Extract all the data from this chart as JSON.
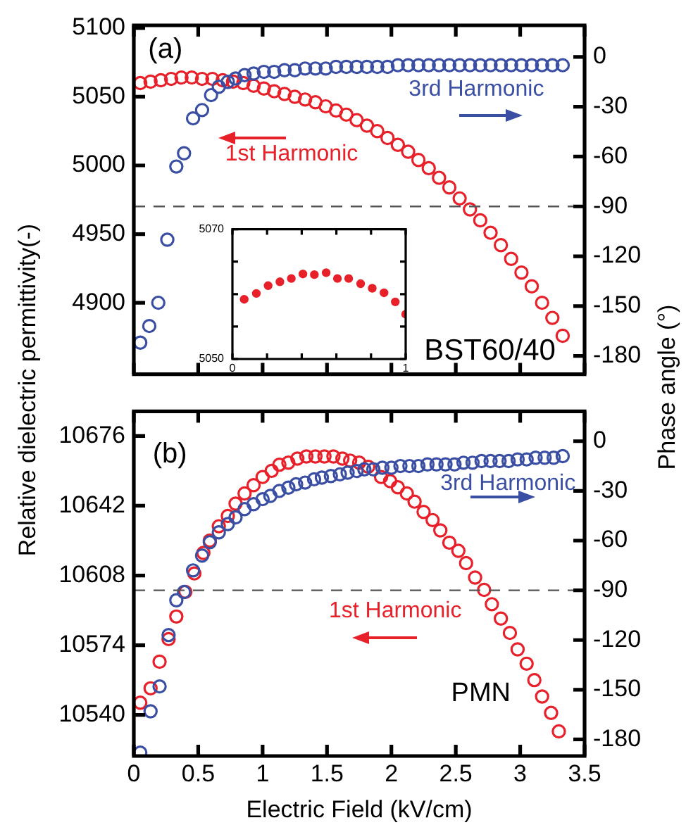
{
  "chart_data": [
    {
      "type": "scatter",
      "ylabel": "Relative dielectric permittivity(-)",
      "y2label": "Phase angle (°)",
      "annotations": [
        "(a)",
        "BST60/40"
      ],
      "xlim": [
        0,
        3.5
      ],
      "xticks": [
        0,
        0.5,
        1,
        1.5,
        2,
        2.5,
        3,
        3.5
      ],
      "ylim": [
        4848,
        5102
      ],
      "yticks": [
        4900,
        4950,
        5000,
        5050,
        5100
      ],
      "y2lim": [
        -191,
        19
      ],
      "y2ticks": [
        -180,
        -150,
        -120,
        -90,
        -60,
        -30,
        0
      ],
      "tick_labels": "y",
      "marker": "circle",
      "ref_lines": [
        {
          "axis": "y2",
          "value": -90,
          "color": "#555555",
          "line_style": "dashed"
        }
      ],
      "series": [
        {
          "name": "1st Harmonic",
          "color": "#e8202a",
          "axis": "y",
          "x": [
            0.05,
            0.13,
            0.21,
            0.29,
            0.37,
            0.45,
            0.53,
            0.61,
            0.69,
            0.77,
            0.85,
            0.93,
            1.01,
            1.09,
            1.17,
            1.25,
            1.33,
            1.41,
            1.49,
            1.57,
            1.65,
            1.73,
            1.81,
            1.89,
            1.97,
            2.05,
            2.13,
            2.21,
            2.29,
            2.37,
            2.45,
            2.53,
            2.61,
            2.69,
            2.77,
            2.85,
            2.93,
            3.01,
            3.09,
            3.17,
            3.25,
            3.33
          ],
          "values": [
            5060,
            5061,
            5062,
            5063,
            5064,
            5064,
            5063,
            5063,
            5062,
            5061,
            5060,
            5058,
            5056,
            5054,
            5052,
            5050,
            5048,
            5046,
            5043,
            5040,
            5037,
            5033,
            5029,
            5025,
            5020,
            5015,
            5010,
            5004,
            4998,
            4991,
            4984,
            4976,
            4968,
            4960,
            4951,
            4942,
            4932,
            4922,
            4912,
            4900,
            4889,
            4876
          ]
        },
        {
          "name": "3rd Harmonic",
          "color": "#3a4fa3",
          "axis": "y2",
          "x": [
            0.05,
            0.12,
            0.19,
            0.26,
            0.33,
            0.39,
            0.46,
            0.53,
            0.6,
            0.66,
            0.73,
            0.79,
            0.86,
            0.93,
            1.01,
            1.09,
            1.17,
            1.25,
            1.33,
            1.41,
            1.49,
            1.57,
            1.65,
            1.73,
            1.81,
            1.89,
            1.97,
            2.05,
            2.13,
            2.21,
            2.29,
            2.37,
            2.45,
            2.53,
            2.61,
            2.69,
            2.77,
            2.85,
            2.93,
            3.01,
            3.09,
            3.17,
            3.25,
            3.33
          ],
          "values": [
            -172,
            -162,
            -148,
            -110,
            -66,
            -58,
            -37,
            -32,
            -23,
            -18,
            -15,
            -13,
            -11,
            -10,
            -9,
            -9,
            -8,
            -8,
            -7,
            -7,
            -7,
            -6,
            -6,
            -6,
            -6,
            -6,
            -6,
            -5,
            -5,
            -5,
            -5,
            -5,
            -5,
            -5,
            -5,
            -5,
            -5,
            -5,
            -5,
            -5,
            -5,
            -5,
            -5,
            -5
          ]
        }
      ]
    },
    {
      "type": "scatter",
      "xlim": [
        0,
        1
      ],
      "xticks": [
        0,
        {
          "value": 0.2,
          "label": null
        },
        {
          "value": 0.4,
          "label": null
        },
        {
          "value": 0.6,
          "label": null
        },
        {
          "value": 0.8,
          "label": null
        },
        1
      ],
      "ylim": [
        5050,
        5070
      ],
      "yticks": [
        5050,
        {
          "value": 5055,
          "label": null
        },
        {
          "value": 5060,
          "label": null
        },
        {
          "value": 5065,
          "label": null
        },
        5070
      ],
      "marker": "circle",
      "series": [
        {
          "color": "#e8202a",
          "x": [
            0.068,
            0.138,
            0.206,
            0.274,
            0.34,
            0.407,
            0.473,
            0.541,
            0.606,
            0.671,
            0.74,
            0.807,
            0.875,
            0.94,
            1.0
          ],
          "values": [
            5059.2,
            5060.1,
            5061.3,
            5061.9,
            5062.4,
            5063.1,
            5063.0,
            5063.3,
            5062.4,
            5062.4,
            5061.6,
            5060.9,
            5060.2,
            5058.8,
            5056.9
          ]
        }
      ]
    },
    {
      "type": "scatter",
      "xlabel": "Electric Field (kV/cm)",
      "annotations": [
        "(b)",
        "PMN"
      ],
      "xlim": [
        0,
        3.5
      ],
      "xticks": [
        0,
        0.5,
        1,
        1.5,
        2,
        2.5,
        3,
        3.5
      ],
      "ylim": [
        10520,
        10688
      ],
      "yticks": [
        10540,
        10574,
        10608,
        10642,
        10676
      ],
      "y2lim": [
        -190,
        18
      ],
      "y2ticks": [
        -180,
        -150,
        -120,
        -90,
        -60,
        -30,
        0
      ],
      "marker": "circle",
      "ref_lines": [
        {
          "axis": "y2",
          "value": -90,
          "color": "#555555",
          "line_style": "dashed"
        }
      ],
      "series": [
        {
          "name": "1st Harmonic",
          "color": "#e8202a",
          "axis": "y",
          "x": [
            0.05,
            0.13,
            0.2,
            0.27,
            0.33,
            0.4,
            0.47,
            0.54,
            0.59,
            0.66,
            0.73,
            0.79,
            0.86,
            0.93,
            1.0,
            1.07,
            1.13,
            1.2,
            1.27,
            1.34,
            1.41,
            1.48,
            1.55,
            1.62,
            1.68,
            1.75,
            1.82,
            1.92,
            1.99,
            2.05,
            2.12,
            2.18,
            2.25,
            2.32,
            2.38,
            2.45,
            2.52,
            2.58,
            2.65,
            2.72,
            2.78,
            2.85,
            2.92,
            2.98,
            3.05,
            3.11,
            3.17,
            3.24,
            3.3
          ],
          "values": [
            10546,
            10553,
            10566,
            10577,
            10588,
            10600,
            10609,
            10619,
            10625,
            10632,
            10637,
            10643,
            10648,
            10652,
            10656,
            10659,
            10662,
            10663,
            10665,
            10666,
            10666,
            10666,
            10666,
            10665,
            10664,
            10663,
            10661,
            10656,
            10654,
            10651,
            10648,
            10644,
            10639,
            10635,
            10630,
            10624,
            10620,
            10614,
            10607,
            10601,
            10594,
            10587,
            10580,
            10572,
            10565,
            10557,
            10549,
            10541,
            10532
          ]
        },
        {
          "name": "3rd Harmonic",
          "color": "#3a4fa3",
          "axis": "y2",
          "x": [
            0.05,
            0.13,
            0.2,
            0.27,
            0.33,
            0.39,
            0.46,
            0.53,
            0.59,
            0.66,
            0.73,
            0.79,
            0.86,
            0.93,
            1.0,
            1.06,
            1.13,
            1.2,
            1.26,
            1.33,
            1.4,
            1.46,
            1.53,
            1.6,
            1.66,
            1.73,
            1.79,
            1.86,
            1.93,
            2.0,
            2.07,
            2.14,
            2.21,
            2.28,
            2.35,
            2.42,
            2.49,
            2.56,
            2.63,
            2.7,
            2.77,
            2.84,
            2.91,
            2.98,
            3.05,
            3.12,
            3.19,
            3.26,
            3.33
          ],
          "values": [
            -188,
            -163,
            -148,
            -117,
            -96,
            -91,
            -78,
            -69,
            -61,
            -55,
            -50,
            -46,
            -41,
            -38,
            -35,
            -33,
            -30,
            -28,
            -26,
            -25,
            -23,
            -22,
            -21,
            -20,
            -19,
            -18,
            -17,
            -17,
            -16,
            -16,
            -15,
            -15,
            -15,
            -14,
            -14,
            -14,
            -14,
            -13,
            -13,
            -12,
            -12,
            -12,
            -12,
            -11,
            -11,
            -10,
            -10,
            -10,
            -9
          ]
        }
      ]
    }
  ]
}
